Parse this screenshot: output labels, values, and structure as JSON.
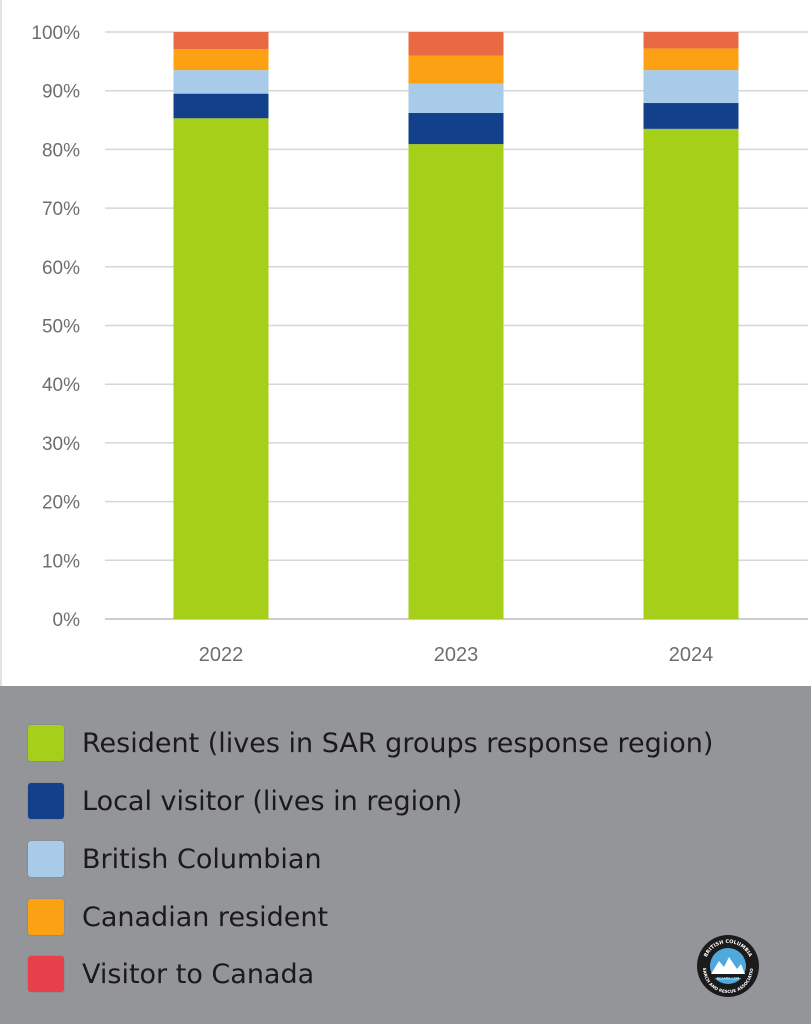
{
  "chart_data": {
    "type": "bar",
    "stacked": true,
    "categories": [
      "2022",
      "2023",
      "2024"
    ],
    "series": [
      {
        "name": "Resident (lives in SAR groups response region)",
        "color": "#a6cf1a",
        "values": [
          85.3,
          80.9,
          83.5
        ]
      },
      {
        "name": "Local visitor (lives in region)",
        "color": "#12408b",
        "values": [
          4.2,
          5.3,
          4.4
        ]
      },
      {
        "name": "British Columbian",
        "color": "#a7cbe9",
        "values": [
          4.0,
          5.0,
          5.6
        ]
      },
      {
        "name": "Canadian resident",
        "color": "#fda114",
        "values": [
          3.6,
          4.8,
          3.7
        ]
      },
      {
        "name": "Visitor to Canada",
        "color": "#e96942",
        "values": [
          2.9,
          4.0,
          2.8
        ]
      }
    ],
    "ylim": [
      0,
      100
    ],
    "yticks": [
      "0%",
      "10%",
      "20%",
      "30%",
      "40%",
      "50%",
      "60%",
      "70%",
      "80%",
      "90%",
      "100%"
    ],
    "grid": true,
    "legend_position": "bottom"
  },
  "legend": {
    "items": [
      {
        "label": "Resident (lives in SAR groups response region)",
        "color": "#a6cf1a"
      },
      {
        "label": "Local visitor (lives in region)",
        "color": "#12408b"
      },
      {
        "label": "British Columbian",
        "color": "#a7cbe9"
      },
      {
        "label": "Canadian resident",
        "color": "#fda114"
      },
      {
        "label": "Visitor to Canada",
        "color": "#e8404a"
      }
    ]
  },
  "logo": {
    "top_text": "BRITISH COLUMBIA",
    "url_text": "BCSARA.COM",
    "bottom_text": "SEARCH AND RESCUE ASSOCIATION"
  }
}
